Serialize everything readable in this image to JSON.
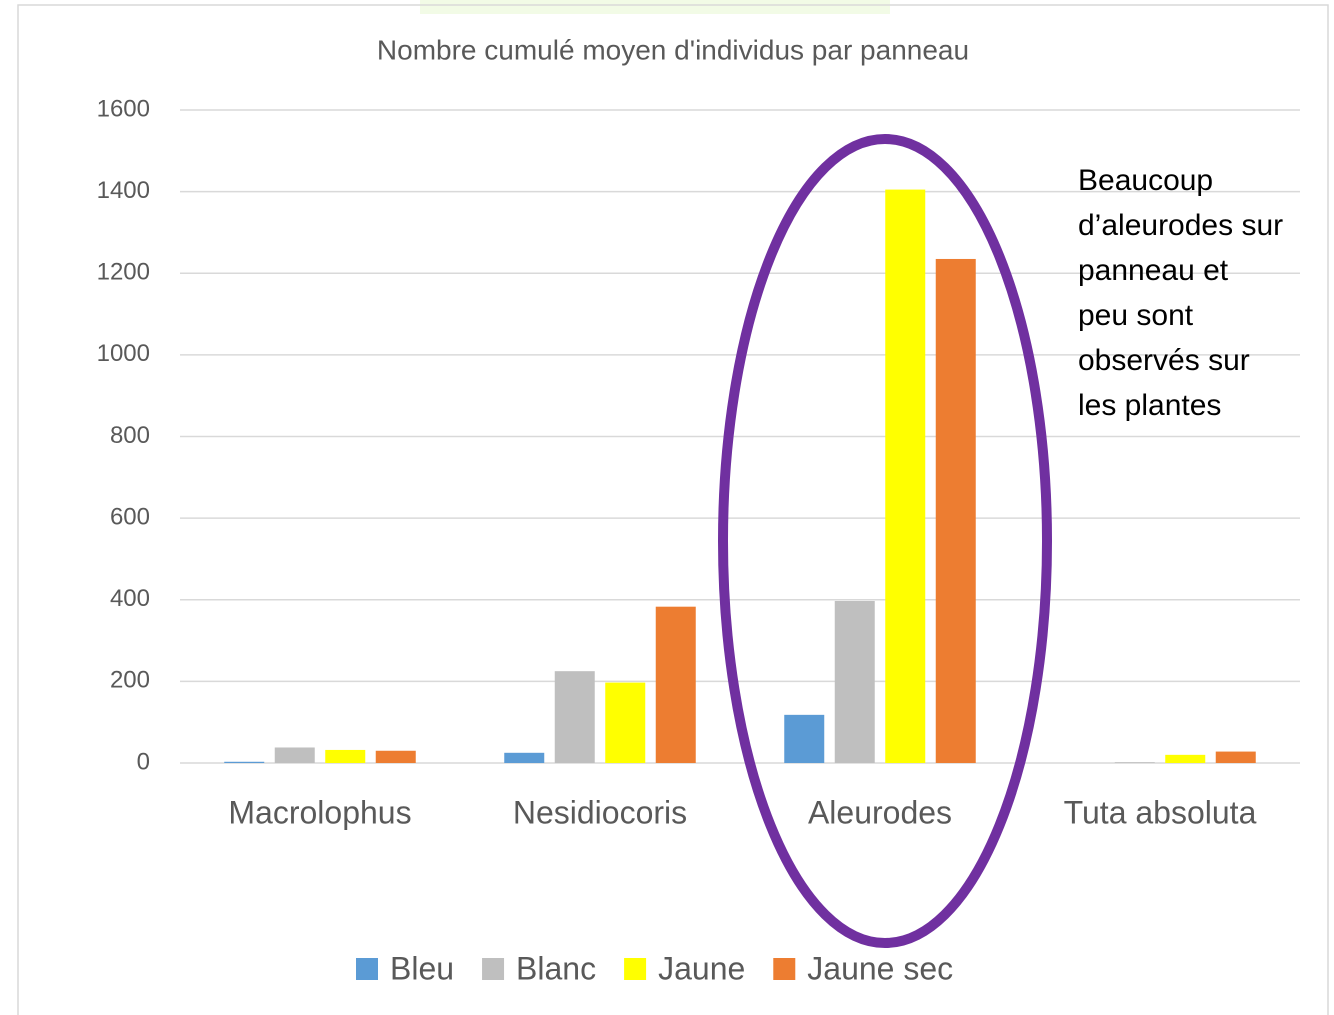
{
  "chart_data": {
    "type": "bar",
    "title": "Nombre cumulé moyen d'individus par panneau",
    "categories": [
      "Macrolophus",
      "Nesidiocoris",
      "Aleurodes",
      "Tuta absoluta"
    ],
    "series": [
      {
        "name": "Bleu",
        "color": "#5b9bd5",
        "values": [
          3,
          25,
          118,
          0
        ]
      },
      {
        "name": "Blanc",
        "color": "#bfbfbf",
        "values": [
          38,
          225,
          397,
          2
        ]
      },
      {
        "name": "Jaune",
        "color": "#ffff00",
        "values": [
          32,
          197,
          1405,
          20
        ]
      },
      {
        "name": "Jaune sec",
        "color": "#ed7d31",
        "values": [
          30,
          383,
          1235,
          28
        ]
      }
    ],
    "ylim": [
      0,
      1600
    ],
    "yticks": [
      0,
      200,
      400,
      600,
      800,
      1000,
      1200,
      1400,
      1600
    ],
    "grid": true,
    "legend": "bottom",
    "annotation": [
      "Beaucoup",
      "d’aleurodes sur",
      "panneau et",
      "peu sont",
      "observés sur",
      "les plantes"
    ]
  }
}
